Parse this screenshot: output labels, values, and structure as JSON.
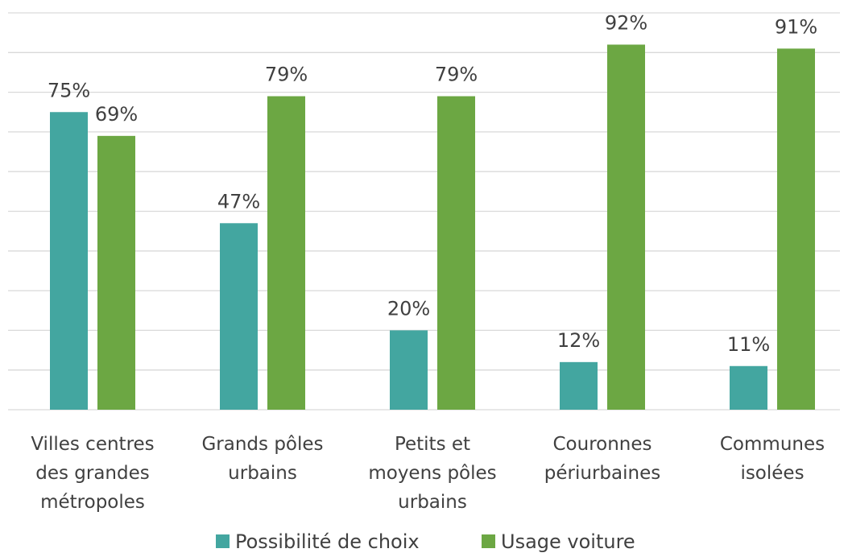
{
  "chart_data": {
    "type": "bar",
    "categories": [
      "Villes centres des grandes métropoles",
      "Grands pôles urbains",
      "Petits et moyens pôles urbains",
      "Couronnes périurbaines",
      "Communes isolées"
    ],
    "series": [
      {
        "name": "Possibilité de choix",
        "color": "#43a6a0",
        "values": [
          75,
          47,
          20,
          12,
          11
        ],
        "value_labels": [
          "75%",
          "47%",
          "20%",
          "12%",
          "11%"
        ]
      },
      {
        "name": "Usage voiture",
        "color": "#6ca743",
        "values": [
          69,
          79,
          79,
          92,
          91
        ],
        "value_labels": [
          "69%",
          "79%",
          "79%",
          "92%",
          "91%"
        ]
      }
    ],
    "ylim": [
      0,
      100
    ],
    "yticks": [
      0,
      10,
      20,
      30,
      40,
      50,
      60,
      70,
      80,
      90,
      100
    ],
    "grid": true,
    "legend": "bottom"
  }
}
